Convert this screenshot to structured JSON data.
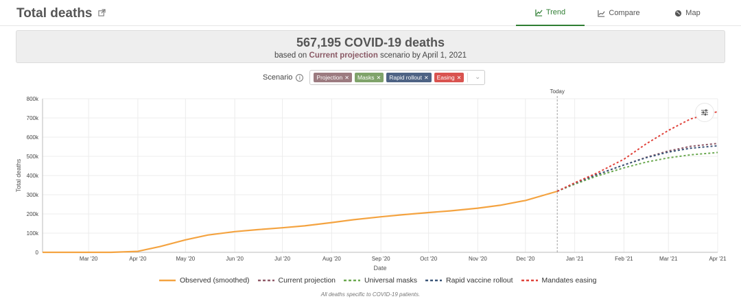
{
  "header": {
    "title": "Total deaths",
    "tabs": [
      {
        "label": "Trend",
        "icon": "chart-line-icon",
        "active": true
      },
      {
        "label": "Compare",
        "icon": "chart-compare-icon",
        "active": false
      },
      {
        "label": "Map",
        "icon": "globe-icon",
        "active": false
      }
    ]
  },
  "banner": {
    "headline": "567,195 COVID-19 deaths",
    "prefix": "based on",
    "scenario": "Current projection",
    "suffix": "scenario by April 1, 2021"
  },
  "scenario_filter": {
    "label": "Scenario",
    "chips": [
      {
        "label": "Projection",
        "color": "#9c7b80"
      },
      {
        "label": "Masks",
        "color": "#7fa36a"
      },
      {
        "label": "Rapid rollout",
        "color": "#4e6384"
      },
      {
        "label": "Easing",
        "color": "#d9534f"
      }
    ]
  },
  "chart_data": {
    "type": "line",
    "xlabel": "Date",
    "ylabel": "Total deaths",
    "ylim": [
      0,
      800000
    ],
    "yticks": [
      0,
      100000,
      200000,
      300000,
      400000,
      500000,
      600000,
      700000,
      800000
    ],
    "ytick_labels": [
      "0",
      "100k",
      "200k",
      "300k",
      "400k",
      "500k",
      "600k",
      "700k",
      "800k"
    ],
    "xlim": [
      "2020-02-01",
      "2021-04-01"
    ],
    "xticks": [
      "2020-03-01",
      "2020-04-01",
      "2020-05-01",
      "2020-06-01",
      "2020-07-01",
      "2020-08-01",
      "2020-09-01",
      "2020-10-01",
      "2020-11-01",
      "2020-12-01",
      "2021-01-01",
      "2021-02-01",
      "2021-03-01",
      "2021-04-01"
    ],
    "xtick_labels": [
      "Mar '20",
      "Apr '20",
      "May '20",
      "Jun '20",
      "Jul '20",
      "Aug '20",
      "Sep '20",
      "Oct '20",
      "Nov '20",
      "Dec '20",
      "Jan '21",
      "Feb '21",
      "Mar '21",
      "Apr '21"
    ],
    "today": {
      "date": "2020-12-21",
      "label": "Today"
    },
    "grid": true,
    "legend_position": "bottom",
    "series": [
      {
        "name": "Observed (smoothed)",
        "color": "#f4a340",
        "dash": false,
        "points": [
          [
            "2020-02-01",
            0
          ],
          [
            "2020-03-15",
            100
          ],
          [
            "2020-04-01",
            5000
          ],
          [
            "2020-04-15",
            30000
          ],
          [
            "2020-05-01",
            65000
          ],
          [
            "2020-05-15",
            90000
          ],
          [
            "2020-06-01",
            108000
          ],
          [
            "2020-06-15",
            118000
          ],
          [
            "2020-07-01",
            128000
          ],
          [
            "2020-07-15",
            138000
          ],
          [
            "2020-08-01",
            155000
          ],
          [
            "2020-08-15",
            170000
          ],
          [
            "2020-09-01",
            185000
          ],
          [
            "2020-09-15",
            196000
          ],
          [
            "2020-10-01",
            207000
          ],
          [
            "2020-10-15",
            216000
          ],
          [
            "2020-11-01",
            230000
          ],
          [
            "2020-11-15",
            245000
          ],
          [
            "2020-12-01",
            270000
          ],
          [
            "2020-12-21",
            318000
          ]
        ]
      },
      {
        "name": "Current projection",
        "color": "#8f5a68",
        "dash": true,
        "points": [
          [
            "2020-12-21",
            318000
          ],
          [
            "2021-01-01",
            360000
          ],
          [
            "2021-01-15",
            405000
          ],
          [
            "2021-02-01",
            455000
          ],
          [
            "2021-02-15",
            495000
          ],
          [
            "2021-03-01",
            528000
          ],
          [
            "2021-03-15",
            552000
          ],
          [
            "2021-04-01",
            567195
          ]
        ]
      },
      {
        "name": "Universal masks",
        "color": "#6aa84f",
        "dash": true,
        "points": [
          [
            "2020-12-21",
            318000
          ],
          [
            "2021-01-01",
            355000
          ],
          [
            "2021-01-15",
            397000
          ],
          [
            "2021-02-01",
            440000
          ],
          [
            "2021-02-15",
            470000
          ],
          [
            "2021-03-01",
            492000
          ],
          [
            "2021-03-15",
            508000
          ],
          [
            "2021-04-01",
            520000
          ]
        ]
      },
      {
        "name": "Rapid vaccine rollout",
        "color": "#3c5679",
        "dash": true,
        "points": [
          [
            "2020-12-21",
            318000
          ],
          [
            "2021-01-01",
            360000
          ],
          [
            "2021-01-15",
            405000
          ],
          [
            "2021-02-01",
            455000
          ],
          [
            "2021-02-15",
            493000
          ],
          [
            "2021-03-01",
            522000
          ],
          [
            "2021-03-15",
            542000
          ],
          [
            "2021-04-01",
            555000
          ]
        ]
      },
      {
        "name": "Mandates easing",
        "color": "#e0423a",
        "dash": true,
        "points": [
          [
            "2020-12-21",
            318000
          ],
          [
            "2021-01-01",
            362000
          ],
          [
            "2021-01-15",
            413000
          ],
          [
            "2021-02-01",
            485000
          ],
          [
            "2021-02-15",
            565000
          ],
          [
            "2021-03-01",
            635000
          ],
          [
            "2021-03-15",
            695000
          ],
          [
            "2021-04-01",
            733000
          ]
        ]
      }
    ]
  },
  "footnote": "All deaths specific to COVID-19 patients."
}
